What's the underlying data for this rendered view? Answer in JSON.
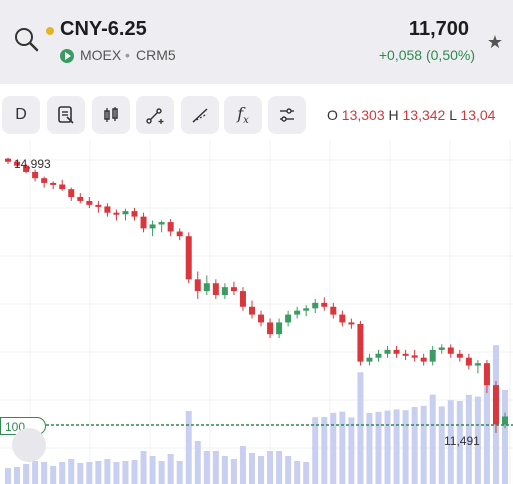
{
  "header": {
    "ticker": "CNY-6.25",
    "price": "11,700",
    "exchange": "MOEX",
    "separator": "•",
    "contract": "CRM5",
    "change": "+0,058 (0,50%)"
  },
  "toolbar": {
    "timeframe": "D",
    "buttons": [
      "timeframe-button",
      "notes-icon",
      "candles-icon",
      "draw-line-icon",
      "draw-ray-icon",
      "fx-icon",
      "settings-sliders-icon"
    ],
    "fx_label": "f"
  },
  "ohlc": {
    "o_key": "O",
    "o_val": "13,303",
    "h_key": "H",
    "h_val": "13,342",
    "l_key": "L",
    "l_val": "13,04"
  },
  "chart": {
    "high_label": "14,993",
    "low_label": "11,491",
    "volume_badge": "100",
    "colors": {
      "up": "#3a9b63",
      "down": "#d9363e",
      "volume": "#c9cff0"
    }
  },
  "chart_data": {
    "type": "candlestick",
    "y_high_marker": 14.993,
    "y_low_marker": 11.491,
    "ohlc": [
      [
        14.99,
        15.0,
        14.92,
        14.95
      ],
      [
        14.95,
        14.97,
        14.88,
        14.9
      ],
      [
        14.9,
        14.92,
        14.8,
        14.82
      ],
      [
        14.82,
        14.85,
        14.7,
        14.74
      ],
      [
        14.74,
        14.76,
        14.62,
        14.68
      ],
      [
        14.68,
        14.7,
        14.6,
        14.66
      ],
      [
        14.66,
        14.72,
        14.58,
        14.6
      ],
      [
        14.6,
        14.62,
        14.45,
        14.5
      ],
      [
        14.5,
        14.55,
        14.42,
        14.45
      ],
      [
        14.45,
        14.5,
        14.36,
        14.4
      ],
      [
        14.4,
        14.45,
        14.3,
        14.38
      ],
      [
        14.38,
        14.42,
        14.25,
        14.3
      ],
      [
        14.3,
        14.34,
        14.2,
        14.28
      ],
      [
        14.28,
        14.35,
        14.2,
        14.32
      ],
      [
        14.32,
        14.36,
        14.2,
        14.25
      ],
      [
        14.25,
        14.3,
        14.05,
        14.1
      ],
      [
        14.1,
        14.2,
        14.0,
        14.15
      ],
      [
        14.15,
        14.2,
        14.05,
        14.18
      ],
      [
        14.18,
        14.22,
        14.0,
        14.06
      ],
      [
        14.06,
        14.1,
        13.95,
        14.0
      ],
      [
        14.0,
        14.05,
        13.4,
        13.45
      ],
      [
        13.45,
        13.55,
        13.2,
        13.3
      ],
      [
        13.3,
        13.5,
        13.25,
        13.4
      ],
      [
        13.4,
        13.45,
        13.2,
        13.25
      ],
      [
        13.25,
        13.4,
        13.2,
        13.35
      ],
      [
        13.35,
        13.42,
        13.25,
        13.3
      ],
      [
        13.3,
        13.35,
        13.05,
        13.1
      ],
      [
        13.1,
        13.18,
        12.95,
        13.0
      ],
      [
        13.0,
        13.05,
        12.85,
        12.9
      ],
      [
        12.9,
        12.95,
        12.7,
        12.75
      ],
      [
        12.75,
        12.95,
        12.7,
        12.9
      ],
      [
        12.9,
        13.05,
        12.85,
        13.0
      ],
      [
        13.0,
        13.1,
        12.95,
        13.05
      ],
      [
        13.05,
        13.12,
        12.98,
        13.08
      ],
      [
        13.08,
        13.2,
        13.02,
        13.15
      ],
      [
        13.15,
        13.22,
        13.05,
        13.1
      ],
      [
        13.1,
        13.15,
        12.95,
        13.0
      ],
      [
        13.0,
        13.05,
        12.85,
        12.9
      ],
      [
        12.9,
        12.95,
        12.82,
        12.88
      ],
      [
        12.88,
        12.92,
        12.35,
        12.4
      ],
      [
        12.4,
        12.5,
        12.35,
        12.45
      ],
      [
        12.45,
        12.55,
        12.4,
        12.5
      ],
      [
        12.5,
        12.6,
        12.45,
        12.55
      ],
      [
        12.55,
        12.6,
        12.45,
        12.5
      ],
      [
        12.5,
        12.55,
        12.42,
        12.48
      ],
      [
        12.48,
        12.55,
        12.4,
        12.45
      ],
      [
        12.45,
        12.5,
        12.35,
        12.4
      ],
      [
        12.4,
        12.6,
        12.35,
        12.55
      ],
      [
        12.55,
        12.62,
        12.5,
        12.58
      ],
      [
        12.58,
        12.62,
        12.45,
        12.5
      ],
      [
        12.5,
        12.55,
        12.4,
        12.45
      ],
      [
        12.45,
        12.5,
        12.3,
        12.35
      ],
      [
        12.35,
        12.42,
        12.25,
        12.38
      ],
      [
        12.38,
        12.42,
        12.0,
        12.1
      ],
      [
        12.1,
        12.15,
        11.49,
        11.6
      ],
      [
        11.6,
        11.75,
        11.55,
        11.7
      ]
    ]
  }
}
